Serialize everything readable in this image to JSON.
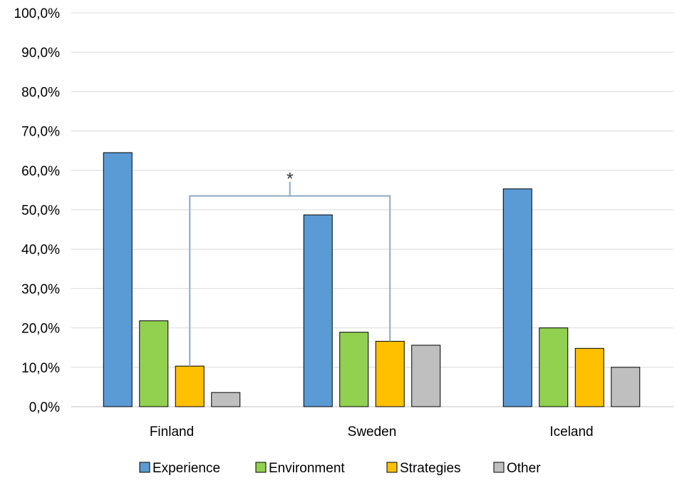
{
  "chart_data": {
    "type": "bar",
    "categories": [
      "Finland",
      "Sweden",
      "Iceland"
    ],
    "series": [
      {
        "name": "Experience",
        "color": "#5b9bd5",
        "values": [
          64.5,
          48.7,
          55.3
        ]
      },
      {
        "name": "Environment",
        "color": "#92d050",
        "values": [
          21.8,
          18.9,
          20.0
        ]
      },
      {
        "name": "Strategies",
        "color": "#ffc000",
        "values": [
          10.3,
          16.6,
          14.8
        ]
      },
      {
        "name": "Other",
        "color": "#bfbfbf",
        "values": [
          3.6,
          15.6,
          10.0
        ]
      }
    ],
    "ylim": [
      0,
      100
    ],
    "yticks": [
      0,
      10,
      20,
      30,
      40,
      50,
      60,
      70,
      80,
      90,
      100
    ],
    "ytick_labels": [
      "0,0%",
      "10,0%",
      "20,0%",
      "30,0%",
      "40,0%",
      "50,0%",
      "60,0%",
      "70,0%",
      "80,0%",
      "90,0%",
      "100,0%"
    ],
    "grid": true,
    "legend_position": "bottom",
    "annotation": {
      "label": "*",
      "from": {
        "category": "Finland",
        "series": "Strategies"
      },
      "to": {
        "category": "Sweden",
        "series": "Strategies"
      },
      "bracket_level": 53.5,
      "color": "#8fa9bd"
    }
  }
}
